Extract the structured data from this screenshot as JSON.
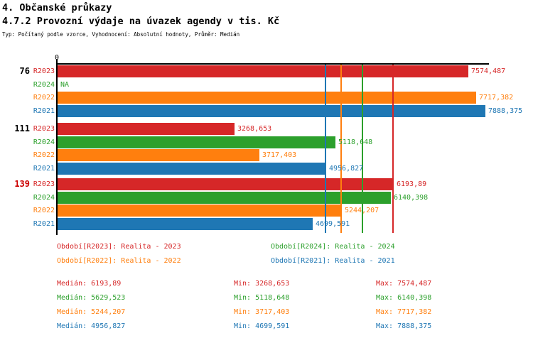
{
  "header": {
    "title1": "4. Občanské průkazy",
    "title2": "4.7.2 Provozní výdaje na úvazek agendy v tis. Kč",
    "subtitle": "Typ: Počítaný podle vzorce, Vyhodnocení: Absolutní hodnoty, Průměr: Medián"
  },
  "colors": {
    "R2023": "#d62728",
    "R2024": "#2ca02c",
    "R2022": "#ff7f0e",
    "R2021": "#1f77b4",
    "axis": "#000000",
    "group_label_default": "#000000",
    "group_label_highlight": "#cc0000"
  },
  "chart_data": {
    "type": "bar",
    "orientation": "horizontal",
    "title": "4.7.2 Provozní výdaje na úvazek agendy v tis. Kč",
    "xlabel": "tis. Kč",
    "zero_label": "0",
    "axis_range": [
      0,
      7956
    ],
    "grid": false,
    "series_order": [
      "R2023",
      "R2024",
      "R2022",
      "R2021"
    ],
    "groups": [
      {
        "label": "76",
        "label_color": "#000000",
        "bars": [
          {
            "series": "R2023",
            "value": 7574.487,
            "display": "7574,487"
          },
          {
            "series": "R2024",
            "value": null,
            "display": "NA"
          },
          {
            "series": "R2022",
            "value": 7717.382,
            "display": "7717,382"
          },
          {
            "series": "R2021",
            "value": 7888.375,
            "display": "7888,375"
          }
        ]
      },
      {
        "label": "111",
        "label_color": "#000000",
        "bars": [
          {
            "series": "R2023",
            "value": 3268.653,
            "display": "3268,653"
          },
          {
            "series": "R2024",
            "value": 5118.648,
            "display": "5118,648"
          },
          {
            "series": "R2022",
            "value": 3717.403,
            "display": "3717,403"
          },
          {
            "series": "R2021",
            "value": 4956.827,
            "display": "4956,827"
          }
        ]
      },
      {
        "label": "139",
        "label_color": "#cc0000",
        "bars": [
          {
            "series": "R2023",
            "value": 6193.89,
            "display": "6193,89"
          },
          {
            "series": "R2024",
            "value": 6140.398,
            "display": "6140,398"
          },
          {
            "series": "R2022",
            "value": 5244.207,
            "display": "5244,207"
          },
          {
            "series": "R2021",
            "value": 4699.591,
            "display": "4699,591"
          }
        ]
      }
    ],
    "median_lines": [
      {
        "series": "R2021",
        "value": 4956.827
      },
      {
        "series": "R2022",
        "value": 5244.207
      },
      {
        "series": "R2024",
        "value": 5629.523
      },
      {
        "series": "R2023",
        "value": 6193.89
      }
    ]
  },
  "legend": {
    "rows": [
      [
        {
          "series": "R2023",
          "label": "Období[R2023]: Realita - 2023"
        },
        {
          "series": "R2024",
          "label": "Období[R2024]: Realita - 2024"
        }
      ],
      [
        {
          "series": "R2022",
          "label": "Období[R2022]: Realita - 2022"
        },
        {
          "series": "R2021",
          "label": "Období[R2021]: Realita - 2021"
        }
      ]
    ]
  },
  "stats": {
    "rows": [
      {
        "series": "R2023",
        "median": "Medián: 6193,89",
        "min": "Min: 3268,653",
        "max": "Max: 7574,487"
      },
      {
        "series": "R2024",
        "median": "Medián: 5629,523",
        "min": "Min: 5118,648",
        "max": "Max: 6140,398"
      },
      {
        "series": "R2022",
        "median": "Medián: 5244,207",
        "min": "Min: 3717,403",
        "max": "Max: 7717,382"
      },
      {
        "series": "R2021",
        "median": "Medián: 4956,827",
        "min": "Min: 4699,591",
        "max": "Max: 7888,375"
      }
    ]
  }
}
